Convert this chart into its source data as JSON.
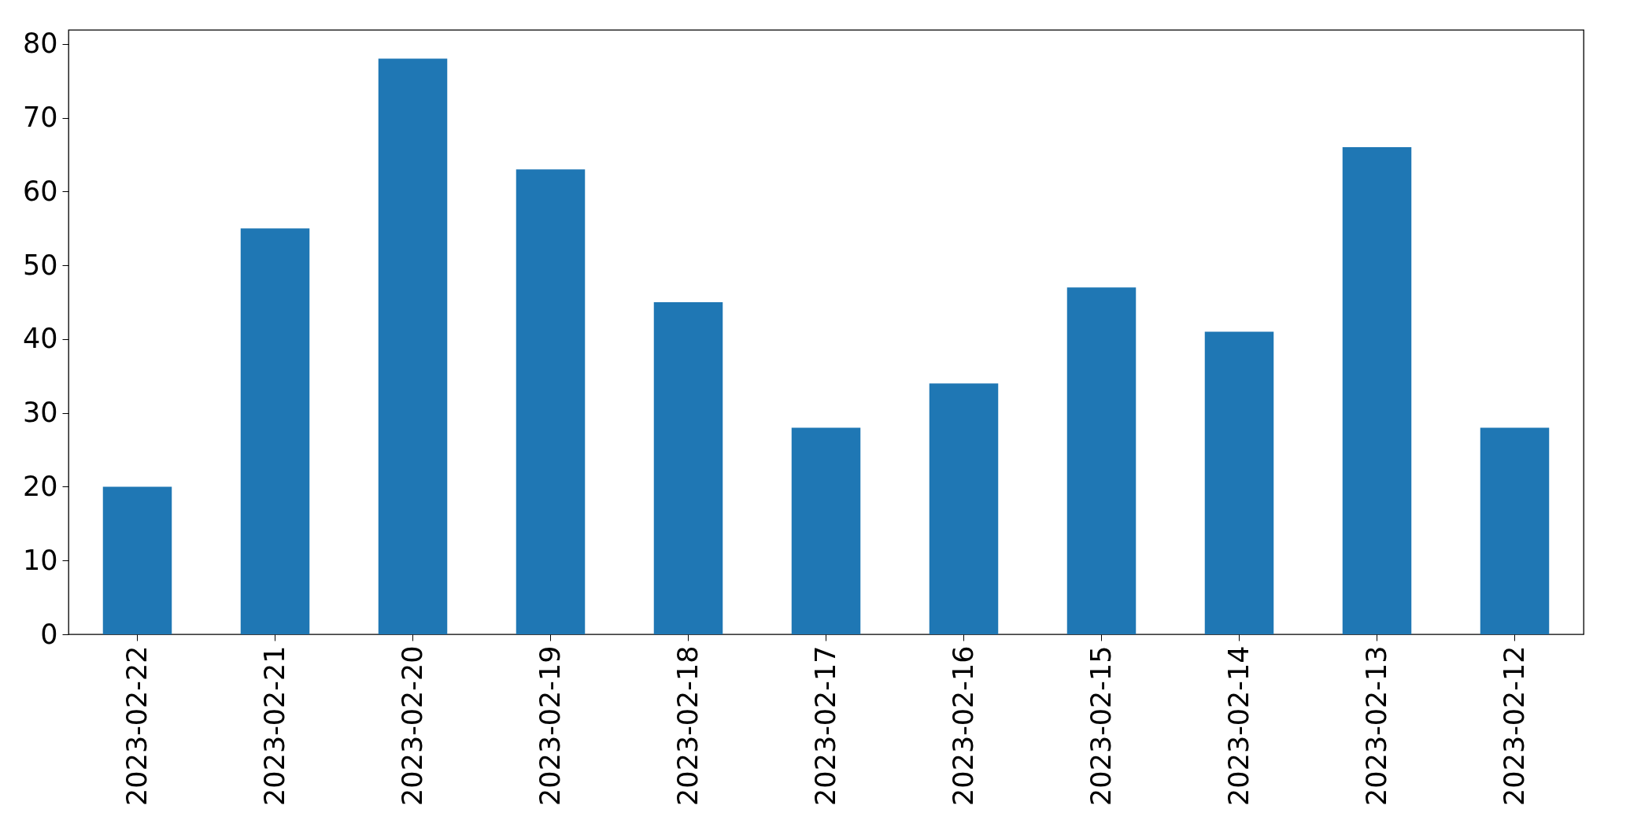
{
  "chart_data": {
    "type": "bar",
    "categories": [
      "2023-02-22",
      "2023-02-21",
      "2023-02-20",
      "2023-02-19",
      "2023-02-18",
      "2023-02-17",
      "2023-02-16",
      "2023-02-15",
      "2023-02-14",
      "2023-02-13",
      "2023-02-12"
    ],
    "values": [
      20,
      55,
      78,
      63,
      45,
      28,
      34,
      47,
      41,
      66,
      28
    ],
    "color": "#1f77b4",
    "ylim": [
      0,
      81.9
    ],
    "yticks": [
      0,
      10,
      20,
      30,
      40,
      50,
      60,
      70,
      80
    ],
    "grid": false
  }
}
